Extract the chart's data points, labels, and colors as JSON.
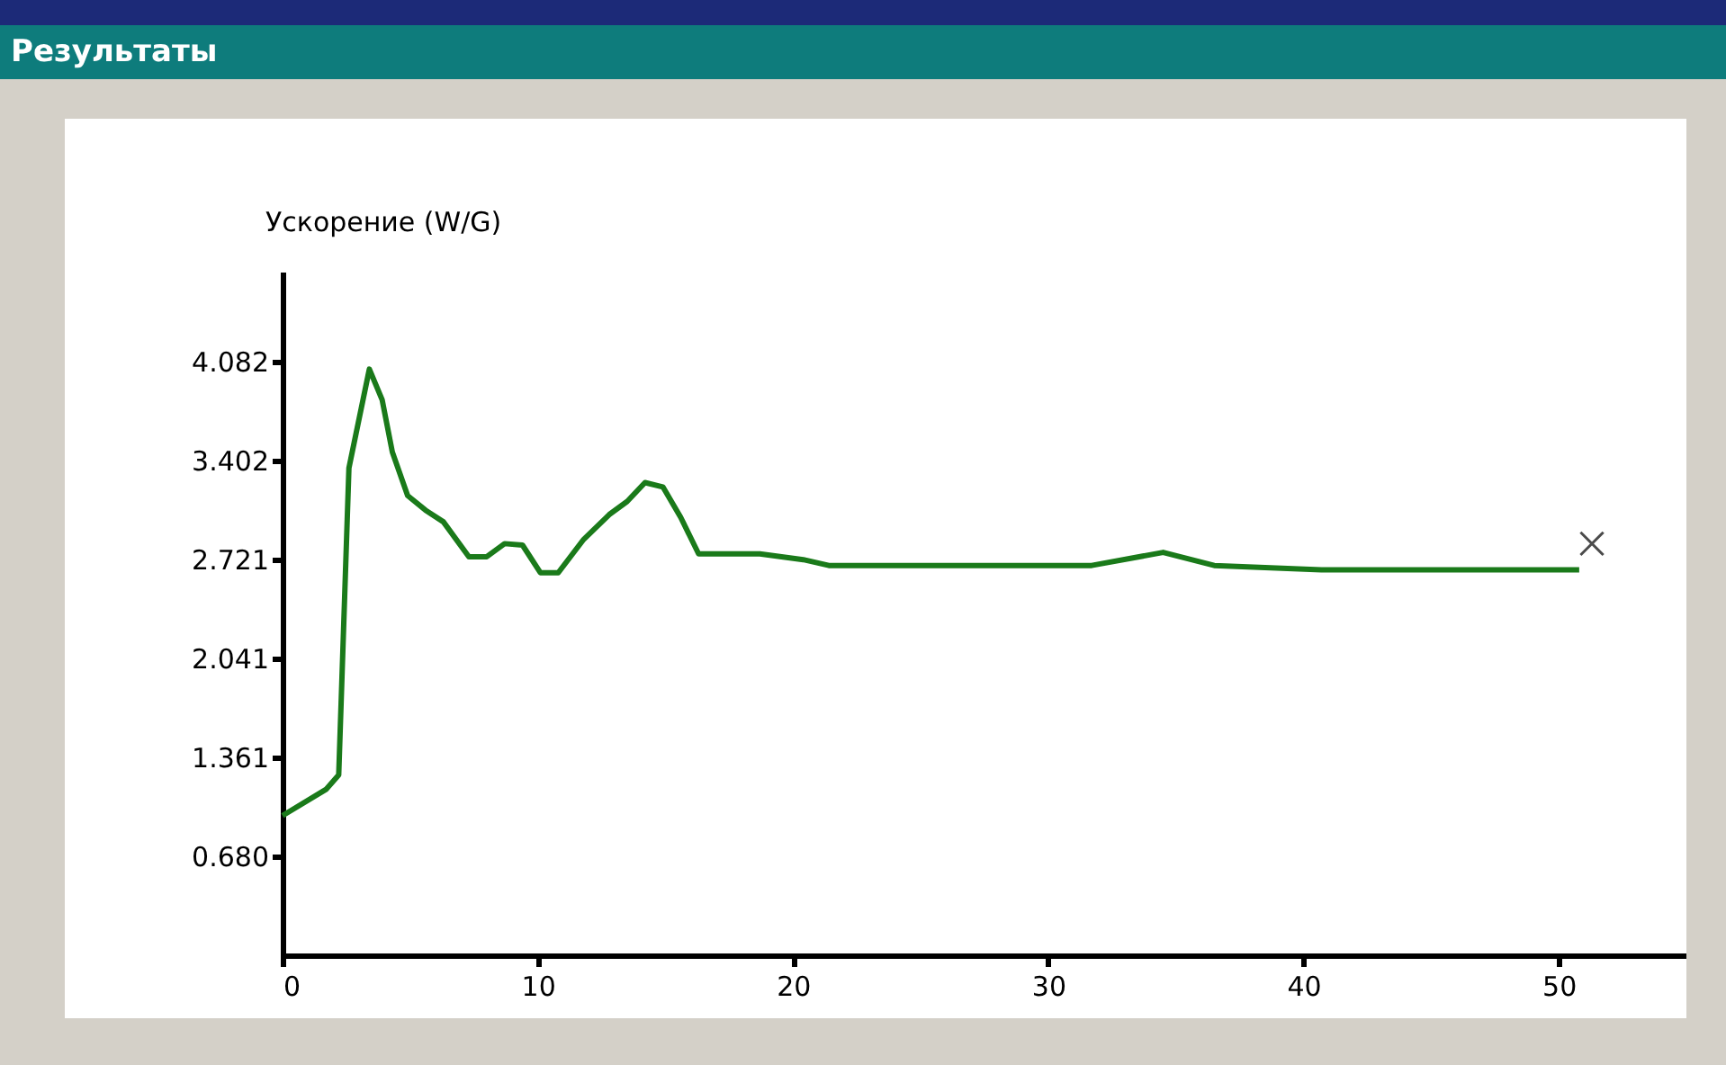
{
  "chart_data": {
    "type": "line",
    "title": "Результаты",
    "ylabel": "Ускорение (W/G)",
    "xlim": [
      0,
      55
    ],
    "xticks": [
      0,
      10,
      20,
      30,
      40,
      50
    ],
    "ylim": [
      0,
      4.7
    ],
    "yticks": [
      {
        "value": 0.68,
        "label": "0.680"
      },
      1.361,
      2.041,
      2.721,
      3.402,
      4.082
    ],
    "grid": false,
    "series": [
      {
        "color": "#1a7a1a",
        "marker": "none",
        "line_style": "solid",
        "x": [
          0,
          1.7,
          2.2,
          2.6,
          3.4,
          3.9,
          4.3,
          4.9,
          5.6,
          6.3,
          7.3,
          8.0,
          8.7,
          9.4,
          10.1,
          10.8,
          11.8,
          12.8,
          13.5,
          14.2,
          14.9,
          15.6,
          16.3,
          18.7,
          20.4,
          21.4,
          31.7,
          34.5,
          36.5,
          40.7,
          50.8
        ],
        "values": [
          0.96,
          1.14,
          1.24,
          3.35,
          4.03,
          3.82,
          3.46,
          3.16,
          3.06,
          2.98,
          2.74,
          2.74,
          2.83,
          2.82,
          2.63,
          2.63,
          2.86,
          3.03,
          3.12,
          3.25,
          3.22,
          3.01,
          2.76,
          2.76,
          2.72,
          2.68,
          2.68,
          2.77,
          2.68,
          2.65,
          2.65
        ]
      },
      {
        "type": "scatter",
        "color": "#000000",
        "marker": "cross",
        "x": [
          51.3
        ],
        "values": [
          2.83
        ]
      }
    ]
  }
}
